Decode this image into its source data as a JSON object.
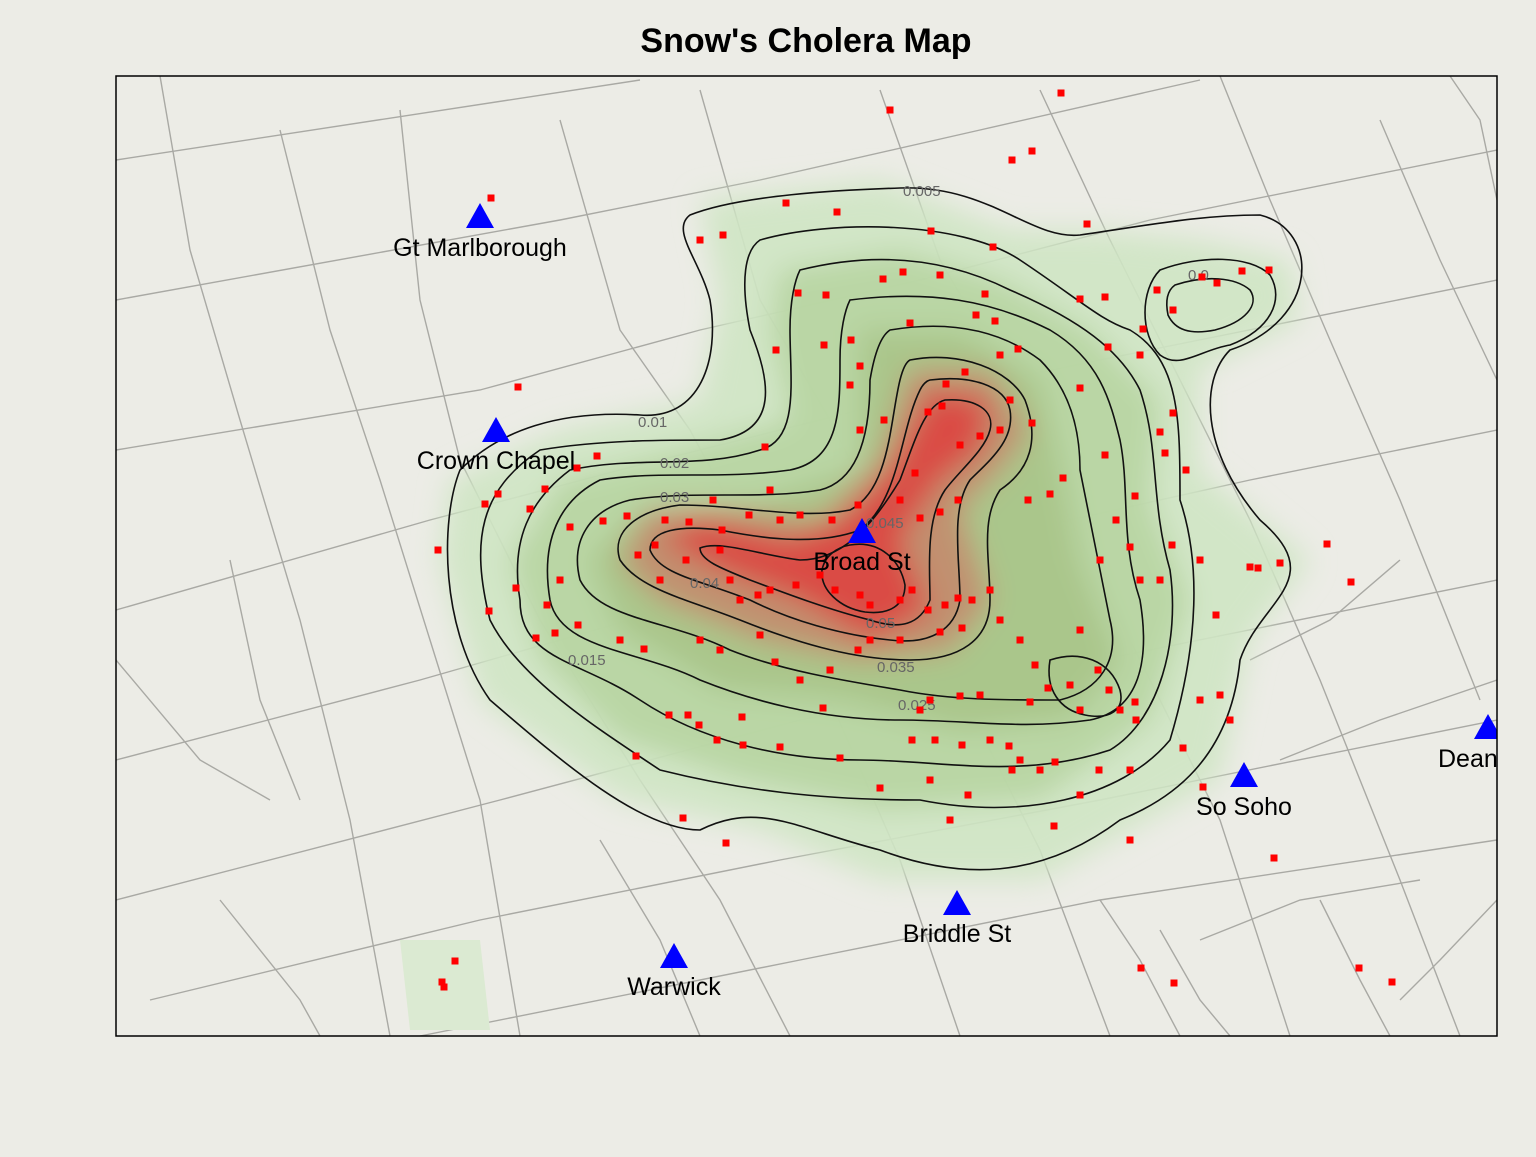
{
  "title": "Snow's Cholera Map",
  "colors": {
    "background": "#ecece6",
    "street": "#a9a9a4",
    "density_low": "#cfe6c4",
    "density_mid": "#9fbf80",
    "density_high": "#e03a3a",
    "death_marker": "#ff0000",
    "pump_marker": "#0000ff",
    "contour": "#111111"
  },
  "icons": {
    "pump": "triangle-pump-icon",
    "death": "square-death-icon"
  },
  "contour_labels": [
    "0.005",
    "0.01",
    "0.015",
    "0.02",
    "0.025",
    "0.03",
    "0.035",
    "0.04",
    "0.045",
    "0.05",
    "0.0"
  ],
  "pumps": [
    {
      "name": "Gt Marlborough"
    },
    {
      "name": "Crown Chapel"
    },
    {
      "name": "Broad St"
    },
    {
      "name": "So Soho"
    },
    {
      "name": "Dean"
    },
    {
      "name": "Briddle St"
    },
    {
      "name": "Warwick"
    }
  ]
}
